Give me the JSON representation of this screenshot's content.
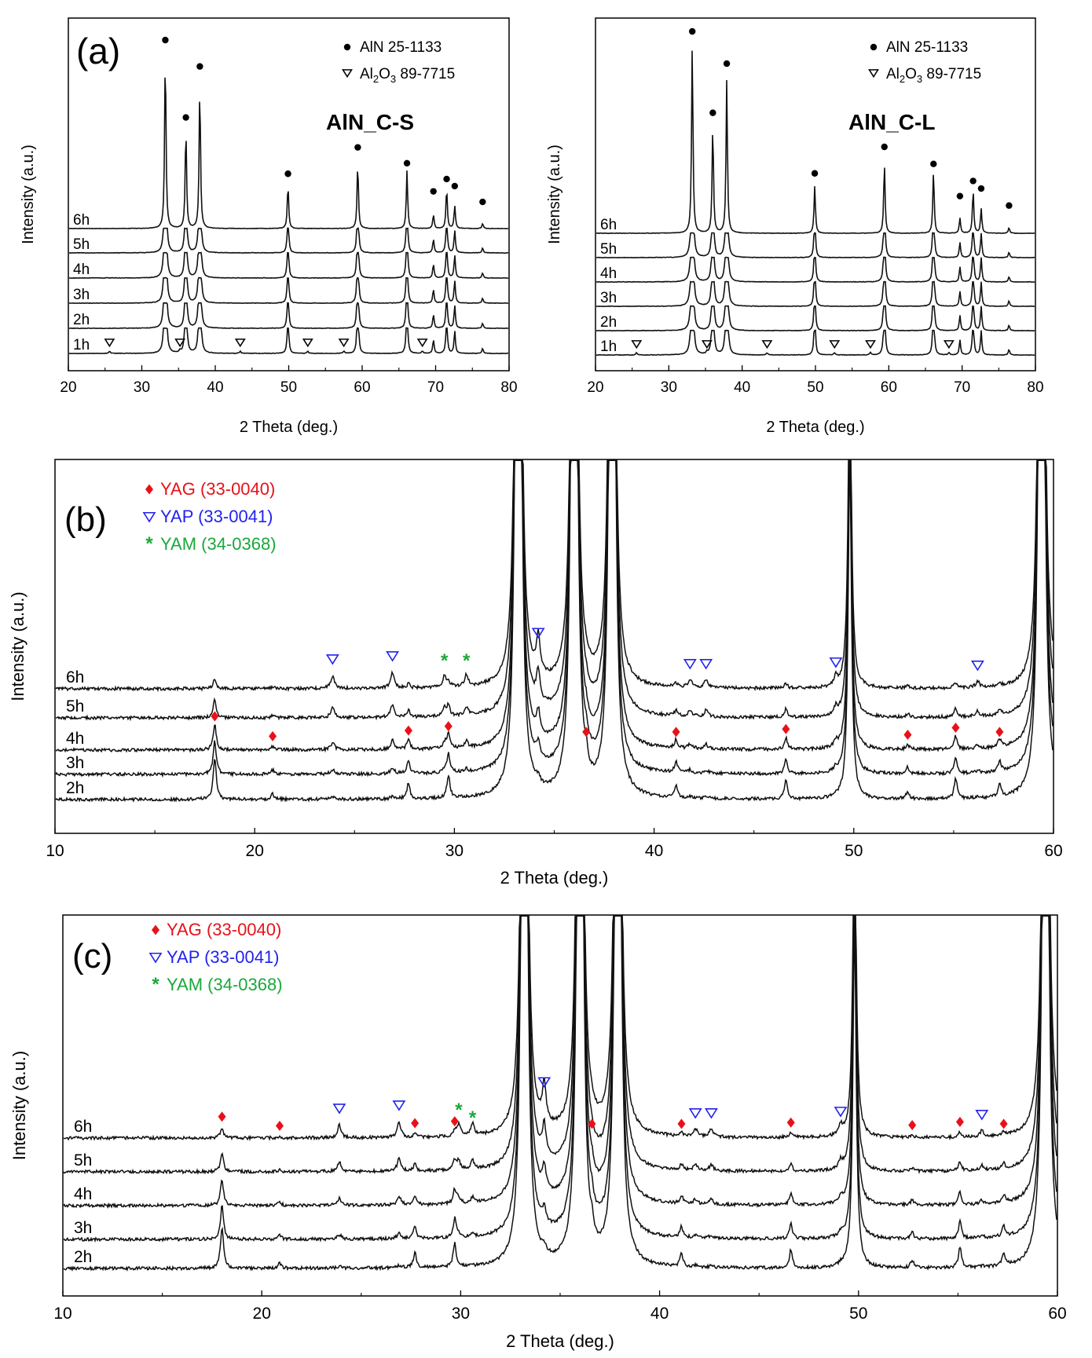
{
  "chart_data": [
    {
      "panel": "(a) left",
      "type": "line",
      "panel_label": "(a)",
      "sample_title": "AlN_C-S",
      "xlabel": "2 Theta (deg.)",
      "ylabel": "Intensity (a.u.)",
      "xlim": [
        20,
        80
      ],
      "x_ticks": [
        "20",
        "30",
        "40",
        "50",
        "60",
        "70",
        "80"
      ],
      "legend": [
        {
          "marker": "dot",
          "text": "AlN 25-1133"
        },
        {
          "marker": "triangle",
          "text": "Al2O3 89-7715"
        }
      ],
      "series": [
        {
          "name": "1h"
        },
        {
          "name": "2h"
        },
        {
          "name": "3h"
        },
        {
          "name": "4h"
        },
        {
          "name": "5h"
        },
        {
          "name": "6h"
        }
      ],
      "aln_peaks": [
        33.2,
        36.0,
        37.9,
        49.9,
        59.4,
        66.1,
        69.7,
        71.5,
        72.6,
        76.4
      ],
      "aln_heights": [
        1.0,
        0.57,
        0.81,
        0.25,
        0.37,
        0.33,
        0.08,
        0.23,
        0.13,
        0.03
      ],
      "al2o3_peaks": [
        25.6,
        35.2,
        43.4,
        52.6,
        57.5,
        68.2
      ],
      "aln_marker_heights": [
        1.0,
        0.56,
        0.85,
        0.24,
        0.39,
        0.3,
        0.14,
        0.21,
        0.17,
        0.08
      ]
    },
    {
      "panel": "(a) right",
      "type": "line",
      "sample_title": "AlN_C-L",
      "xlabel": "2 Theta (deg.)",
      "ylabel": "Intensity (a.u.)",
      "xlim": [
        20,
        80
      ],
      "x_ticks": [
        "20",
        "30",
        "40",
        "50",
        "60",
        "70",
        "80"
      ],
      "legend": [
        {
          "marker": "dot",
          "text": "AlN 25-1133"
        },
        {
          "marker": "triangle",
          "text": "Al2O3 89-7715"
        }
      ],
      "series": [
        {
          "name": "1h"
        },
        {
          "name": "2h"
        },
        {
          "name": "3h"
        },
        {
          "name": "4h"
        },
        {
          "name": "5h"
        },
        {
          "name": "6h"
        }
      ],
      "aln_peaks": [
        33.2,
        36.0,
        37.9,
        49.9,
        59.4,
        66.1,
        69.7,
        71.5,
        72.6,
        76.4
      ],
      "aln_heights": [
        1.0,
        0.57,
        0.81,
        0.25,
        0.37,
        0.33,
        0.08,
        0.23,
        0.13,
        0.03
      ],
      "al2o3_peaks": [
        25.6,
        35.2,
        43.4,
        52.6,
        57.5,
        68.2
      ],
      "aln_marker_heights": [
        1.0,
        0.57,
        0.83,
        0.25,
        0.39,
        0.3,
        0.13,
        0.21,
        0.17,
        0.08
      ]
    },
    {
      "panel": "(b)",
      "type": "line",
      "panel_label": "(b)",
      "xlabel": "2 Theta (deg.)",
      "ylabel": "Intensity (a.u.)",
      "xlim": [
        10,
        60
      ],
      "x_ticks": [
        "10",
        "20",
        "30",
        "40",
        "50",
        "60"
      ],
      "legend": [
        {
          "marker": "diamond",
          "text": "YAG (33-0040)",
          "color": "#e8111a"
        },
        {
          "marker": "triangle",
          "text": "YAP (33-0041)",
          "color": "#2222ee"
        },
        {
          "marker": "star",
          "text": "YAM (34-0368)",
          "color": "#1aa83a"
        }
      ],
      "series": [
        {
          "name": "2h"
        },
        {
          "name": "3h"
        },
        {
          "name": "4h"
        },
        {
          "name": "5h"
        },
        {
          "name": "6h"
        }
      ],
      "yag_peaks": [
        18.0,
        20.9,
        27.7,
        29.7,
        36.6,
        41.1,
        46.6,
        52.7,
        55.1,
        57.3
      ],
      "yap_peaks": [
        23.9,
        26.9,
        34.2,
        41.8,
        42.6,
        49.1,
        56.2
      ],
      "yam_peaks": [
        29.5,
        30.6
      ],
      "aln_peaks": [
        33.2,
        36.0,
        37.9,
        49.8,
        59.4
      ]
    },
    {
      "panel": "(c)",
      "type": "line",
      "panel_label": "(c)",
      "xlabel": "2 Theta (deg.)",
      "ylabel": "Intensity (a.u.)",
      "xlim": [
        10,
        60
      ],
      "x_ticks": [
        "10",
        "20",
        "30",
        "40",
        "50",
        "60"
      ],
      "legend": [
        {
          "marker": "diamond",
          "text": "YAG (33-0040)",
          "color": "#e8111a"
        },
        {
          "marker": "triangle",
          "text": "YAP (33-0041)",
          "color": "#2222ee"
        },
        {
          "marker": "star",
          "text": "YAM (34-0368)",
          "color": "#1aa83a"
        }
      ],
      "series": [
        {
          "name": "2h"
        },
        {
          "name": "3h"
        },
        {
          "name": "4h"
        },
        {
          "name": "5h"
        },
        {
          "name": "6h"
        }
      ],
      "yag_peaks": [
        18.0,
        20.9,
        27.7,
        29.7,
        36.6,
        41.1,
        46.6,
        52.7,
        55.1,
        57.3
      ],
      "yap_peaks": [
        23.9,
        26.9,
        34.2,
        41.8,
        42.6,
        49.1,
        56.2
      ],
      "yam_peaks": [
        29.9,
        30.6
      ],
      "aln_peaks": [
        33.2,
        36.0,
        37.9,
        49.8,
        59.4
      ]
    }
  ],
  "colors": {
    "yag": "#e8111a",
    "yap": "#2222ee",
    "yam": "#1aa83a",
    "line": "#111111"
  }
}
